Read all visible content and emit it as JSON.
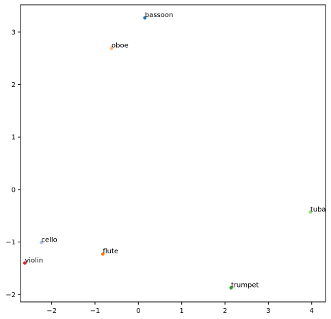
{
  "chart_data": {
    "type": "scatter",
    "title": "",
    "xlabel": "",
    "ylabel": "",
    "xlim": [
      -2.72,
      4.32
    ],
    "ylim": [
      -2.14,
      3.52
    ],
    "xticks": [
      -2,
      -1,
      0,
      1,
      2,
      3,
      4
    ],
    "yticks": [
      -2,
      -1,
      0,
      1,
      2,
      3
    ],
    "grid": false,
    "points": [
      {
        "label": "bassoon",
        "x": 0.15,
        "y": 3.27,
        "color": "#1f77b4"
      },
      {
        "label": "oboe",
        "x": -0.62,
        "y": 2.69,
        "color": "#ffbb78"
      },
      {
        "label": "tuba",
        "x": 3.97,
        "y": -0.43,
        "color": "#98df8a"
      },
      {
        "label": "cello",
        "x": -2.24,
        "y": -1.01,
        "color": "#aec7e8"
      },
      {
        "label": "flute",
        "x": -0.82,
        "y": -1.23,
        "color": "#ff7f0e"
      },
      {
        "label": "violin",
        "x": -2.62,
        "y": -1.4,
        "color": "#d62728"
      },
      {
        "label": "trumpet",
        "x": 2.14,
        "y": -1.87,
        "color": "#2ca02c"
      }
    ]
  }
}
